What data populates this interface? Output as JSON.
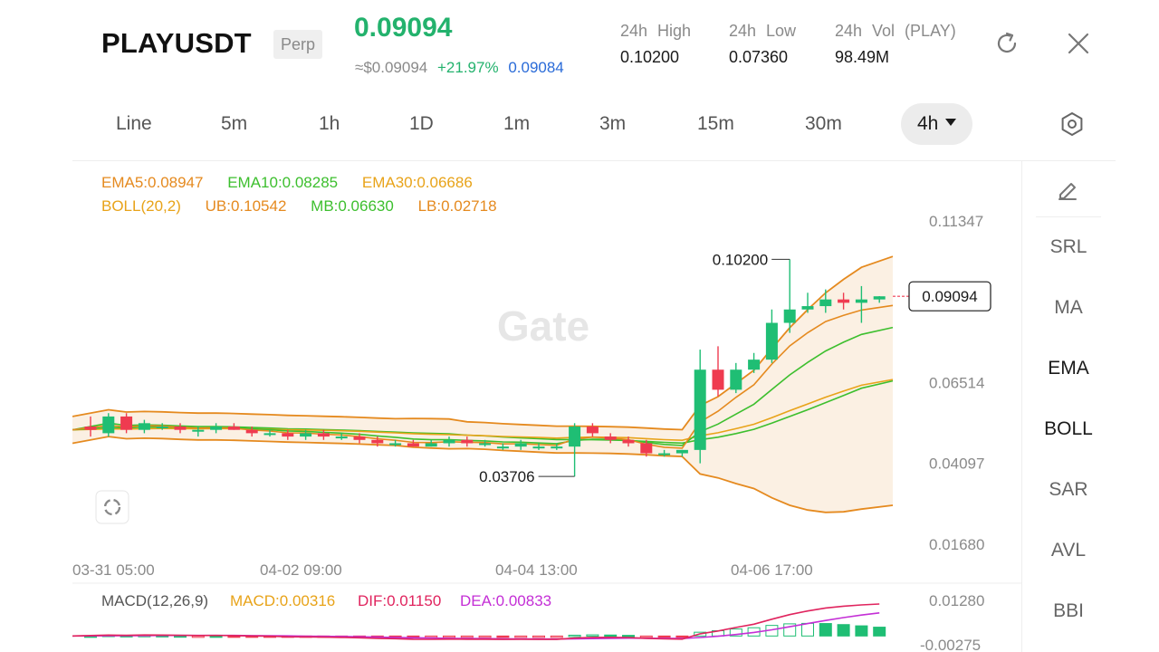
{
  "header": {
    "symbol": "PLAYUSDT",
    "badge": "Perp",
    "last_price": "0.09094",
    "usd_price": "≈$0.09094",
    "change_pct": "+21.97%",
    "mark_price": "0.09084",
    "stats": {
      "high": {
        "label": "24h High",
        "value": "0.10200"
      },
      "low": {
        "label": "24h Low",
        "value": "0.07360"
      },
      "vol": {
        "label": "24h Vol (PLAY)",
        "value": "98.49M"
      }
    }
  },
  "intervals": [
    "Line",
    "5m",
    "1h",
    "1D",
    "1m",
    "3m",
    "15m",
    "30m",
    "4h"
  ],
  "active_interval": "4h",
  "indicators": {
    "ema5": "EMA5:0.08947",
    "ema10": "EMA10:0.08285",
    "ema30": "EMA30:0.06686",
    "boll": "BOLL(20,2)",
    "ub": "UB:0.10542",
    "mb": "MB:0.06630",
    "lb": "LB:0.02718",
    "macd_title": "MACD(12,26,9)",
    "macd": "MACD:0.00316",
    "dif": "DIF:0.01150",
    "dea": "DEA:0.00833"
  },
  "tools": [
    "SRL",
    "MA",
    "EMA",
    "BOLL",
    "SAR",
    "AVL",
    "BBI"
  ],
  "active_tools": [
    "EMA",
    "BOLL"
  ],
  "watermark": "Gate",
  "colors": {
    "up": "#1fbe74",
    "down": "#ef3b50",
    "ema5": "#e58a1f",
    "ema10": "#3dbf2e",
    "ema30": "#e8a319",
    "boll_band": "#e58a1f",
    "boll_fill": "#fbeee0",
    "dif": "#e0245e",
    "dea": "#c42fd6",
    "mark_blue": "#2a6bd8"
  },
  "chart_data": {
    "type": "candlestick",
    "interval": "4h",
    "y_axis_ticks": [
      0.11347,
      0.06514,
      0.04097,
      0.0168
    ],
    "x_axis_ticks": [
      "03-31 05:00",
      "04-02 09:00",
      "04-04 13:00",
      "04-06 17:00"
    ],
    "max_label": "0.10200",
    "min_label": "0.03706",
    "current_price_label": "0.09094",
    "candles": [
      {
        "o": 0.052,
        "h": 0.055,
        "l": 0.049,
        "c": 0.051
      },
      {
        "o": 0.05,
        "h": 0.056,
        "l": 0.049,
        "c": 0.055
      },
      {
        "o": 0.055,
        "h": 0.056,
        "l": 0.05,
        "c": 0.051
      },
      {
        "o": 0.051,
        "h": 0.054,
        "l": 0.05,
        "c": 0.053
      },
      {
        "o": 0.052,
        "h": 0.053,
        "l": 0.051,
        "c": 0.052
      },
      {
        "o": 0.052,
        "h": 0.053,
        "l": 0.05,
        "c": 0.051
      },
      {
        "o": 0.051,
        "h": 0.052,
        "l": 0.049,
        "c": 0.051
      },
      {
        "o": 0.051,
        "h": 0.053,
        "l": 0.05,
        "c": 0.052
      },
      {
        "o": 0.052,
        "h": 0.053,
        "l": 0.051,
        "c": 0.051
      },
      {
        "o": 0.051,
        "h": 0.052,
        "l": 0.049,
        "c": 0.05
      },
      {
        "o": 0.05,
        "h": 0.051,
        "l": 0.049,
        "c": 0.05
      },
      {
        "o": 0.05,
        "h": 0.051,
        "l": 0.048,
        "c": 0.049
      },
      {
        "o": 0.049,
        "h": 0.051,
        "l": 0.048,
        "c": 0.05
      },
      {
        "o": 0.05,
        "h": 0.051,
        "l": 0.048,
        "c": 0.049
      },
      {
        "o": 0.049,
        "h": 0.05,
        "l": 0.048,
        "c": 0.049
      },
      {
        "o": 0.049,
        "h": 0.05,
        "l": 0.047,
        "c": 0.048
      },
      {
        "o": 0.048,
        "h": 0.049,
        "l": 0.046,
        "c": 0.047
      },
      {
        "o": 0.047,
        "h": 0.048,
        "l": 0.046,
        "c": 0.047
      },
      {
        "o": 0.047,
        "h": 0.048,
        "l": 0.046,
        "c": 0.046
      },
      {
        "o": 0.046,
        "h": 0.048,
        "l": 0.046,
        "c": 0.047
      },
      {
        "o": 0.047,
        "h": 0.049,
        "l": 0.046,
        "c": 0.048
      },
      {
        "o": 0.048,
        "h": 0.049,
        "l": 0.046,
        "c": 0.047
      },
      {
        "o": 0.047,
        "h": 0.048,
        "l": 0.046,
        "c": 0.047
      },
      {
        "o": 0.046,
        "h": 0.047,
        "l": 0.045,
        "c": 0.046
      },
      {
        "o": 0.046,
        "h": 0.048,
        "l": 0.045,
        "c": 0.047
      },
      {
        "o": 0.046,
        "h": 0.047,
        "l": 0.045,
        "c": 0.046
      },
      {
        "o": 0.046,
        "h": 0.047,
        "l": 0.045,
        "c": 0.046
      },
      {
        "o": 0.046,
        "h": 0.053,
        "l": 0.03706,
        "c": 0.052
      },
      {
        "o": 0.052,
        "h": 0.053,
        "l": 0.049,
        "c": 0.05
      },
      {
        "o": 0.049,
        "h": 0.05,
        "l": 0.047,
        "c": 0.048
      },
      {
        "o": 0.048,
        "h": 0.049,
        "l": 0.046,
        "c": 0.047
      },
      {
        "o": 0.047,
        "h": 0.048,
        "l": 0.043,
        "c": 0.044
      },
      {
        "o": 0.044,
        "h": 0.045,
        "l": 0.043,
        "c": 0.044
      },
      {
        "o": 0.044,
        "h": 0.045,
        "l": 0.043,
        "c": 0.045
      },
      {
        "o": 0.045,
        "h": 0.075,
        "l": 0.041,
        "c": 0.069
      },
      {
        "o": 0.069,
        "h": 0.076,
        "l": 0.061,
        "c": 0.063
      },
      {
        "o": 0.063,
        "h": 0.071,
        "l": 0.062,
        "c": 0.069
      },
      {
        "o": 0.069,
        "h": 0.074,
        "l": 0.068,
        "c": 0.072
      },
      {
        "o": 0.072,
        "h": 0.087,
        "l": 0.071,
        "c": 0.083
      },
      {
        "o": 0.083,
        "h": 0.102,
        "l": 0.08,
        "c": 0.087
      },
      {
        "o": 0.087,
        "h": 0.092,
        "l": 0.086,
        "c": 0.088
      },
      {
        "o": 0.088,
        "h": 0.093,
        "l": 0.086,
        "c": 0.09
      },
      {
        "o": 0.09,
        "h": 0.092,
        "l": 0.087,
        "c": 0.089
      },
      {
        "o": 0.089,
        "h": 0.094,
        "l": 0.083,
        "c": 0.09
      },
      {
        "o": 0.09,
        "h": 0.091,
        "l": 0.089,
        "c": 0.09094
      }
    ],
    "macd_axis_ticks": [
      0.0128,
      -0.00275
    ]
  }
}
